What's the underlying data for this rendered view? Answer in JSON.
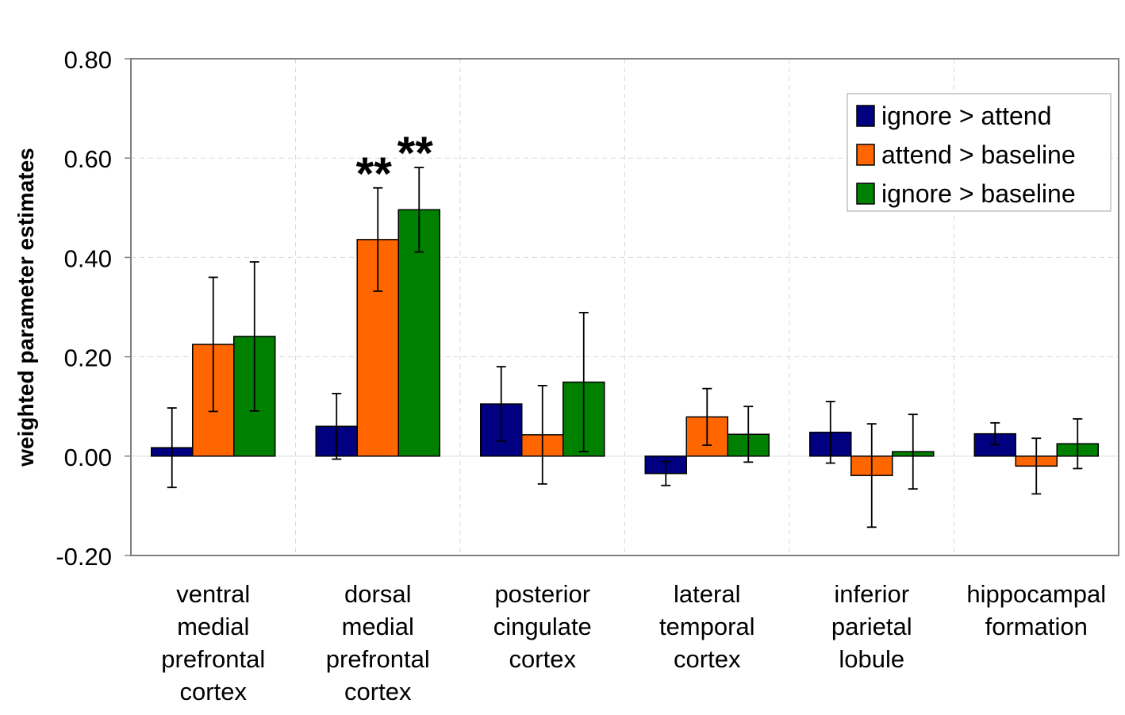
{
  "chart_data": {
    "type": "bar",
    "title": "",
    "xlabel": "",
    "ylabel": "weighted parameter estimates",
    "ylim": [
      -0.2,
      0.8
    ],
    "yticks": [
      "-0.20",
      "0.00",
      "0.20",
      "0.40",
      "0.60",
      "0.80"
    ],
    "grid": true,
    "legend_position": "top-right",
    "categories": [
      [
        "ventral",
        "medial",
        "prefrontal",
        "cortex"
      ],
      [
        "dorsal",
        "medial",
        "prefrontal",
        "cortex"
      ],
      [
        "posterior",
        "cingulate",
        "cortex"
      ],
      [
        "lateral",
        "temporal",
        "cortex"
      ],
      [
        "inferior",
        "parietal",
        "lobule"
      ],
      [
        "hippocampal",
        "formation"
      ]
    ],
    "series": [
      {
        "name": "ignore > attend",
        "color": "#000080",
        "values": [
          0.017,
          0.06,
          0.105,
          -0.035,
          0.048,
          0.045
        ],
        "errors": [
          0.08,
          0.066,
          0.075,
          0.024,
          0.062,
          0.022
        ]
      },
      {
        "name": "attend > baseline",
        "color": "#FF6600",
        "values": [
          0.225,
          0.436,
          0.043,
          0.079,
          -0.039,
          -0.02
        ],
        "errors": [
          0.135,
          0.104,
          0.099,
          0.057,
          0.104,
          0.056
        ]
      },
      {
        "name": "ignore > baseline",
        "color": "#008000",
        "values": [
          0.241,
          0.496,
          0.149,
          0.044,
          0.009,
          0.025
        ],
        "errors": [
          0.15,
          0.085,
          0.14,
          0.056,
          0.075,
          0.05
        ]
      }
    ],
    "annotations": [
      {
        "text": "**",
        "category": 1,
        "series": 1
      },
      {
        "text": "**",
        "category": 1,
        "series": 2
      }
    ]
  }
}
